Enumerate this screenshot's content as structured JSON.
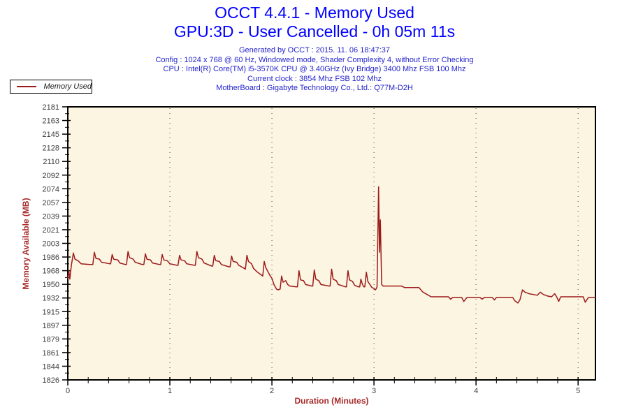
{
  "header": {
    "title_line1": "OCCT 4.4.1 - Memory Used",
    "title_line2": "GPU:3D - User Cancelled - 0h 05m 11s",
    "info_lines": [
      "Generated by OCCT : 2015. 11. 06 18:47:37",
      "Config : 1024 x 768 @ 60 Hz, Windowed mode, Shader Complexity 4, without Error Checking",
      "CPU : Intel(R) Core(TM) i5-3570K CPU @ 3.40GHz (Ivy Bridge) 3400 Mhz FSB 100 Mhz",
      "Current clock : 3854 Mhz FSB 102 Mhz",
      "MotherBoard : Gigabyte Technology Co., Ltd.: Q77M-D2H"
    ]
  },
  "legend": {
    "label": "Memory Used"
  },
  "colors": {
    "title_blue": "#0000FF",
    "info_blue": "#2424CC",
    "line_red": "#9C1A1A",
    "axis_label_red": "#A82A2A",
    "tick_text": "#3C3C3C",
    "plot_bg": "#FCF5E2",
    "axis_black": "#000000"
  },
  "chart_data": {
    "type": "line",
    "title": "OCCT 4.4.1 - Memory Used",
    "subtitle": "GPU:3D - User Cancelled - 0h 05m 11s",
    "xlabel": "Duration (Minutes)",
    "ylabel": "Memory Available (MB)",
    "xlim": [
      0,
      5.17
    ],
    "ylim": [
      1826,
      2181
    ],
    "x_major_ticks": [
      0,
      1,
      2,
      3,
      4,
      5
    ],
    "x_minor_step": 0.2,
    "y_tick_labels": [
      2181,
      2163,
      2145,
      2128,
      2110,
      2092,
      2074,
      2057,
      2039,
      2021,
      2003,
      1986,
      1968,
      1950,
      1932,
      1915,
      1897,
      1879,
      1861,
      1844,
      1826
    ],
    "grid": "vertical dotted lines at each x major tick, no horizontal gridlines",
    "legend_position": "top-left outside plot",
    "series": [
      {
        "name": "Memory Used",
        "color": "#9C1A1A",
        "points": [
          [
            0.0,
            1958
          ],
          [
            0.01,
            1968
          ],
          [
            0.02,
            1957
          ],
          [
            0.035,
            1975
          ],
          [
            0.055,
            1991
          ],
          [
            0.07,
            1983
          ],
          [
            0.1,
            1981
          ],
          [
            0.13,
            1977
          ],
          [
            0.22,
            1976
          ],
          [
            0.245,
            1976
          ],
          [
            0.26,
            1992
          ],
          [
            0.275,
            1984
          ],
          [
            0.31,
            1983
          ],
          [
            0.33,
            1979
          ],
          [
            0.41,
            1977
          ],
          [
            0.42,
            1977
          ],
          [
            0.435,
            1989
          ],
          [
            0.45,
            1983
          ],
          [
            0.49,
            1982
          ],
          [
            0.51,
            1978
          ],
          [
            0.565,
            1976
          ],
          [
            0.575,
            1976
          ],
          [
            0.59,
            1993
          ],
          [
            0.605,
            1985
          ],
          [
            0.64,
            1983
          ],
          [
            0.66,
            1979
          ],
          [
            0.73,
            1976
          ],
          [
            0.745,
            1976
          ],
          [
            0.76,
            1990
          ],
          [
            0.775,
            1983
          ],
          [
            0.81,
            1982
          ],
          [
            0.83,
            1978
          ],
          [
            0.9,
            1976
          ],
          [
            0.91,
            1976
          ],
          [
            0.925,
            1989
          ],
          [
            0.94,
            1982
          ],
          [
            0.975,
            1981
          ],
          [
            1.0,
            1977
          ],
          [
            1.07,
            1975
          ],
          [
            1.08,
            1975
          ],
          [
            1.095,
            1988
          ],
          [
            1.11,
            1982
          ],
          [
            1.145,
            1981
          ],
          [
            1.165,
            1977
          ],
          [
            1.24,
            1975
          ],
          [
            1.25,
            1975
          ],
          [
            1.265,
            1993
          ],
          [
            1.28,
            1985
          ],
          [
            1.315,
            1983
          ],
          [
            1.335,
            1978
          ],
          [
            1.41,
            1974
          ],
          [
            1.42,
            1974
          ],
          [
            1.435,
            1988
          ],
          [
            1.45,
            1981
          ],
          [
            1.485,
            1980
          ],
          [
            1.505,
            1976
          ],
          [
            1.58,
            1973
          ],
          [
            1.59,
            1973
          ],
          [
            1.605,
            1987
          ],
          [
            1.62,
            1980
          ],
          [
            1.655,
            1979
          ],
          [
            1.675,
            1975
          ],
          [
            1.73,
            1971
          ],
          [
            1.74,
            1970
          ],
          [
            1.755,
            1988
          ],
          [
            1.77,
            1980
          ],
          [
            1.8,
            1977
          ],
          [
            1.82,
            1971
          ],
          [
            1.85,
            1967
          ],
          [
            1.88,
            1964
          ],
          [
            1.91,
            1961
          ],
          [
            1.925,
            1980
          ],
          [
            1.94,
            1972
          ],
          [
            1.96,
            1967
          ],
          [
            1.98,
            1962
          ],
          [
            2.0,
            1958
          ],
          [
            2.02,
            1950
          ],
          [
            2.045,
            1944
          ],
          [
            2.06,
            1943
          ],
          [
            2.08,
            1944
          ],
          [
            2.095,
            1961
          ],
          [
            2.11,
            1953
          ],
          [
            2.135,
            1955
          ],
          [
            2.155,
            1950
          ],
          [
            2.175,
            1948
          ],
          [
            2.24,
            1947
          ],
          [
            2.25,
            1947
          ],
          [
            2.265,
            1968
          ],
          [
            2.28,
            1956
          ],
          [
            2.31,
            1955
          ],
          [
            2.33,
            1950
          ],
          [
            2.39,
            1948
          ],
          [
            2.4,
            1948
          ],
          [
            2.415,
            1969
          ],
          [
            2.43,
            1957
          ],
          [
            2.46,
            1955
          ],
          [
            2.48,
            1950
          ],
          [
            2.56,
            1948
          ],
          [
            2.57,
            1948
          ],
          [
            2.585,
            1970
          ],
          [
            2.6,
            1957
          ],
          [
            2.63,
            1955
          ],
          [
            2.65,
            1950
          ],
          [
            2.72,
            1947
          ],
          [
            2.73,
            1947
          ],
          [
            2.745,
            1968
          ],
          [
            2.76,
            1956
          ],
          [
            2.79,
            1954
          ],
          [
            2.81,
            1949
          ],
          [
            2.845,
            1947
          ],
          [
            2.86,
            1947
          ],
          [
            2.872,
            1957
          ],
          [
            2.885,
            1951
          ],
          [
            2.9,
            1947
          ],
          [
            2.91,
            1947
          ],
          [
            2.925,
            1966
          ],
          [
            2.94,
            1954
          ],
          [
            2.96,
            1950
          ],
          [
            2.98,
            1946
          ],
          [
            3.0,
            1945
          ],
          [
            3.01,
            1943
          ],
          [
            3.02,
            1944
          ],
          [
            3.03,
            1947
          ],
          [
            3.045,
            2077
          ],
          [
            3.054,
            1992
          ],
          [
            3.062,
            2034
          ],
          [
            3.075,
            1950
          ],
          [
            3.09,
            1948
          ],
          [
            3.27,
            1948
          ],
          [
            3.3,
            1946
          ],
          [
            3.44,
            1946
          ],
          [
            3.48,
            1940
          ],
          [
            3.52,
            1937
          ],
          [
            3.56,
            1934
          ],
          [
            3.6,
            1934
          ],
          [
            3.73,
            1934
          ],
          [
            3.75,
            1931
          ],
          [
            3.77,
            1933
          ],
          [
            3.86,
            1933
          ],
          [
            3.88,
            1928
          ],
          [
            3.91,
            1933
          ],
          [
            4.04,
            1933
          ],
          [
            4.06,
            1931
          ],
          [
            4.08,
            1933
          ],
          [
            4.16,
            1933
          ],
          [
            4.18,
            1930
          ],
          [
            4.2,
            1933
          ],
          [
            4.36,
            1933
          ],
          [
            4.38,
            1929
          ],
          [
            4.41,
            1926
          ],
          [
            4.43,
            1930
          ],
          [
            4.455,
            1943
          ],
          [
            4.48,
            1940
          ],
          [
            4.52,
            1938
          ],
          [
            4.56,
            1937
          ],
          [
            4.6,
            1936
          ],
          [
            4.63,
            1940
          ],
          [
            4.66,
            1937
          ],
          [
            4.7,
            1935
          ],
          [
            4.74,
            1934
          ],
          [
            4.77,
            1938
          ],
          [
            4.79,
            1934
          ],
          [
            4.81,
            1928
          ],
          [
            4.83,
            1934
          ],
          [
            5.0,
            1934
          ],
          [
            5.05,
            1934
          ],
          [
            5.07,
            1927
          ],
          [
            5.1,
            1933
          ],
          [
            5.17,
            1933
          ]
        ]
      }
    ]
  }
}
